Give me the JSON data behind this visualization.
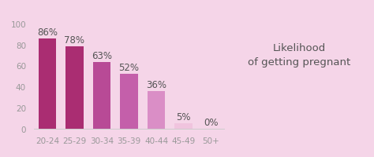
{
  "categories": [
    "20-24",
    "25-29",
    "30-34",
    "35-39",
    "40-44",
    "45-49",
    "50+"
  ],
  "values": [
    86,
    78,
    63,
    52,
    36,
    5,
    0
  ],
  "bar_colors": [
    "#aa2d72",
    "#aa2d72",
    "#b84a96",
    "#c45faa",
    "#da8ec6",
    "#f0c4de",
    "#f0c4de"
  ],
  "labels": [
    "86%",
    "78%",
    "63%",
    "52%",
    "36%",
    "5%",
    "0%"
  ],
  "title_line1": "Likelihood",
  "title_line2": "of getting pregnant",
  "ylim": [
    0,
    105
  ],
  "yticks": [
    0,
    20,
    40,
    60,
    80,
    100
  ],
  "background_color": "#f5d5e8",
  "text_color": "#555555",
  "tick_color": "#999999",
  "title_fontsize": 9.5,
  "label_fontsize": 8.5,
  "tick_fontsize": 7.5,
  "bar_width": 0.65
}
